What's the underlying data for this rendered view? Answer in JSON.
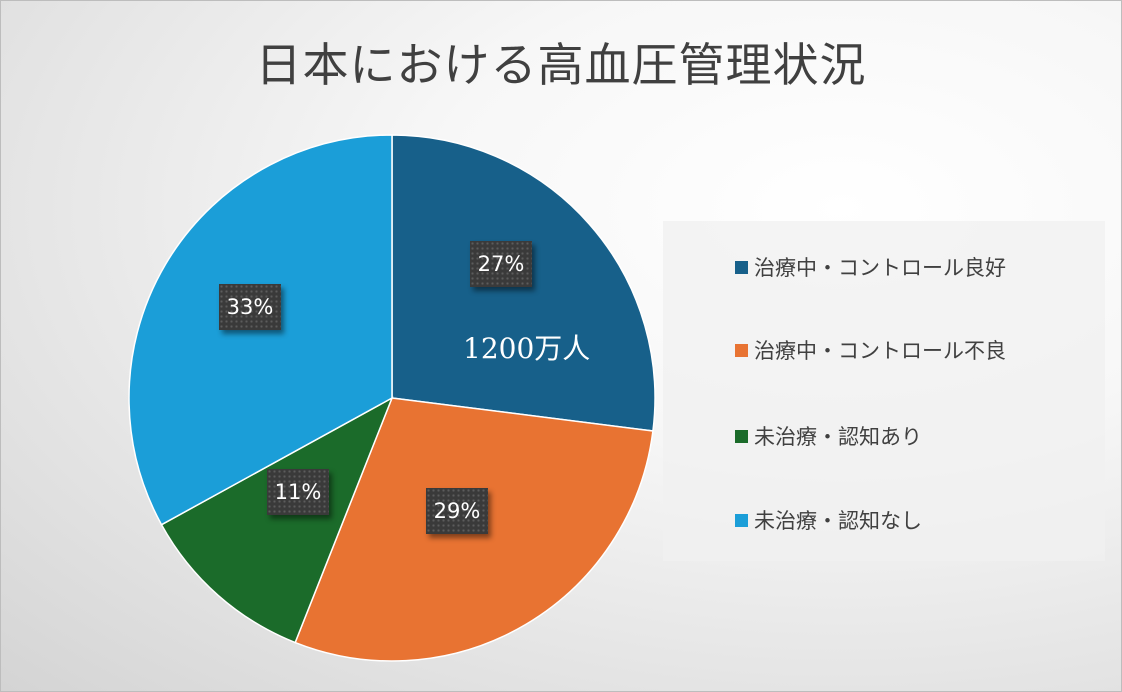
{
  "chart_data": {
    "type": "pie",
    "title": "日本における高血圧管理状況",
    "categories": [
      "治療中・コントロール良好",
      "治療中・コントロール不良",
      "未治療・認知あり",
      "未治療・認知なし"
    ],
    "values": [
      27,
      29,
      11,
      33
    ],
    "data_labels": [
      "27%",
      "29%",
      "11%",
      "33%"
    ],
    "colors": [
      "#17608a",
      "#e87332",
      "#1b6b2a",
      "#1b9ed8"
    ],
    "annotations": [
      "1200万人"
    ],
    "legend_position": "right",
    "start_angle_deg": 0,
    "direction": "clockwise"
  }
}
